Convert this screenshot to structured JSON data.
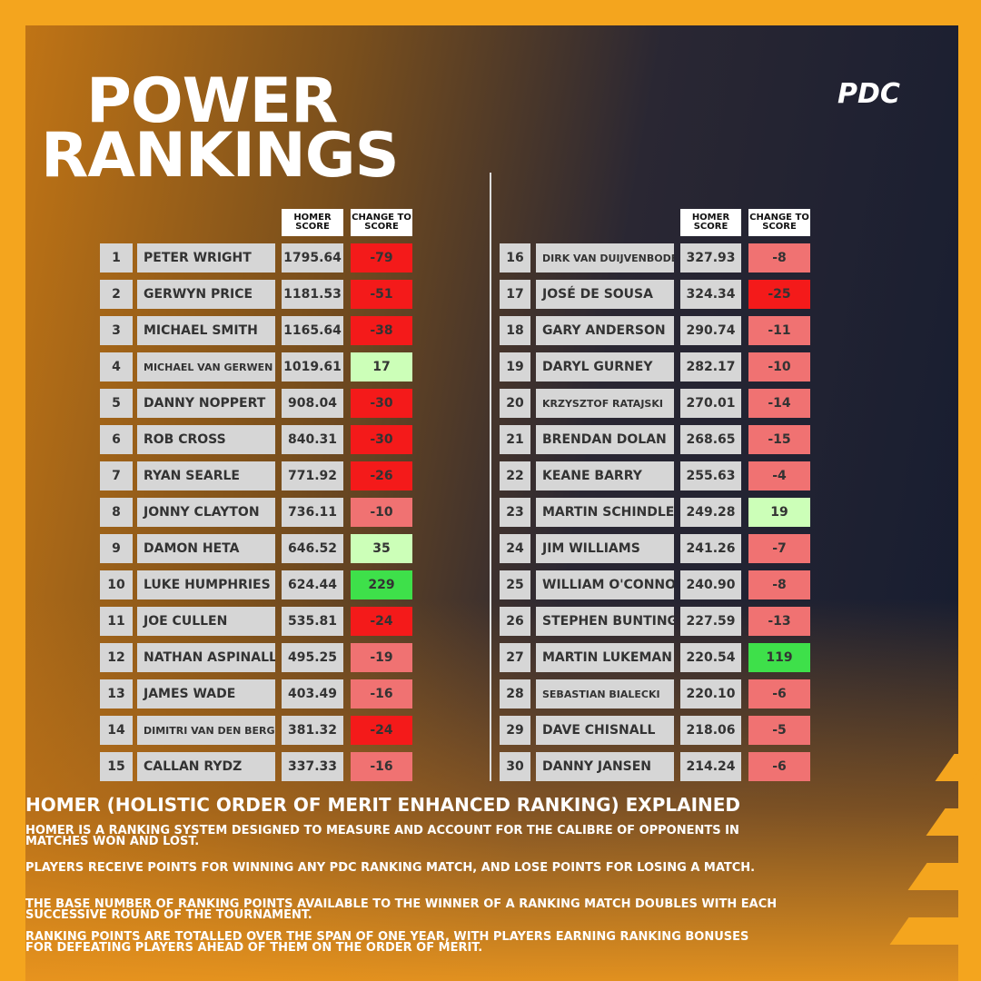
{
  "title_line1": "POWER",
  "title_line2": "RANKINGS",
  "logo": "PDC",
  "headers": {
    "score": "HOMER SCORE",
    "change": "CHANGE TO SCORE"
  },
  "rows": [
    {
      "rank": 1,
      "name": "PETER WRIGHT",
      "score": "1795.64",
      "change": -79,
      "color": "#f41a1a"
    },
    {
      "rank": 2,
      "name": "GERWYN PRICE",
      "score": "1181.53",
      "change": -51,
      "color": "#f41a1a"
    },
    {
      "rank": 3,
      "name": "MICHAEL SMITH",
      "score": "1165.64",
      "change": -38,
      "color": "#f41a1a"
    },
    {
      "rank": 4,
      "name": "MICHAEL VAN GERWEN",
      "score": "1019.61",
      "change": 17,
      "color": "#ccffb8"
    },
    {
      "rank": 5,
      "name": "DANNY NOPPERT",
      "score": "908.04",
      "change": -30,
      "color": "#f41a1a"
    },
    {
      "rank": 6,
      "name": "ROB CROSS",
      "score": "840.31",
      "change": -30,
      "color": "#f41a1a"
    },
    {
      "rank": 7,
      "name": "RYAN SEARLE",
      "score": "771.92",
      "change": -26,
      "color": "#f41a1a"
    },
    {
      "rank": 8,
      "name": "JONNY CLAYTON",
      "score": "736.11",
      "change": -10,
      "color": "#f07272"
    },
    {
      "rank": 9,
      "name": "DAMON HETA",
      "score": "646.52",
      "change": 35,
      "color": "#ccffb8"
    },
    {
      "rank": 10,
      "name": "LUKE HUMPHRIES",
      "score": "624.44",
      "change": 229,
      "color": "#3ee04a"
    },
    {
      "rank": 11,
      "name": "JOE CULLEN",
      "score": "535.81",
      "change": -24,
      "color": "#f41a1a"
    },
    {
      "rank": 12,
      "name": "NATHAN ASPINALL",
      "score": "495.25",
      "change": -19,
      "color": "#f07272"
    },
    {
      "rank": 13,
      "name": "JAMES WADE",
      "score": "403.49",
      "change": -16,
      "color": "#f07272"
    },
    {
      "rank": 14,
      "name": "DIMITRI VAN DEN BERGH",
      "score": "381.32",
      "change": -24,
      "color": "#f41a1a"
    },
    {
      "rank": 15,
      "name": "CALLAN RYDZ",
      "score": "337.33",
      "change": -16,
      "color": "#f07272"
    },
    {
      "rank": 16,
      "name": "DIRK VAN DUIJVENBODE",
      "score": "327.93",
      "change": -8,
      "color": "#f07272"
    },
    {
      "rank": 17,
      "name": "JOSÉ DE SOUSA",
      "score": "324.34",
      "change": -25,
      "color": "#f41a1a"
    },
    {
      "rank": 18,
      "name": "GARY ANDERSON",
      "score": "290.74",
      "change": -11,
      "color": "#f07272"
    },
    {
      "rank": 19,
      "name": "DARYL GURNEY",
      "score": "282.17",
      "change": -10,
      "color": "#f07272"
    },
    {
      "rank": 20,
      "name": "KRZYSZTOF RATAJSKI",
      "score": "270.01",
      "change": -14,
      "color": "#f07272"
    },
    {
      "rank": 21,
      "name": "BRENDAN DOLAN",
      "score": "268.65",
      "change": -15,
      "color": "#f07272"
    },
    {
      "rank": 22,
      "name": "KEANE BARRY",
      "score": "255.63",
      "change": -4,
      "color": "#f07272"
    },
    {
      "rank": 23,
      "name": "MARTIN SCHINDLER",
      "score": "249.28",
      "change": 19,
      "color": "#ccffb8"
    },
    {
      "rank": 24,
      "name": "JIM WILLIAMS",
      "score": "241.26",
      "change": -7,
      "color": "#f07272"
    },
    {
      "rank": 25,
      "name": "WILLIAM O'CONNOR",
      "score": "240.90",
      "change": -8,
      "color": "#f07272"
    },
    {
      "rank": 26,
      "name": "STEPHEN BUNTING",
      "score": "227.59",
      "change": -13,
      "color": "#f07272"
    },
    {
      "rank": 27,
      "name": "MARTIN LUKEMAN",
      "score": "220.54",
      "change": 119,
      "color": "#3ee04a"
    },
    {
      "rank": 28,
      "name": "SEBASTIAN BIALECKI",
      "score": "220.10",
      "change": -6,
      "color": "#f07272"
    },
    {
      "rank": 29,
      "name": "DAVE CHISNALL",
      "score": "218.06",
      "change": -5,
      "color": "#f07272"
    },
    {
      "rank": 30,
      "name": "DANNY JANSEN",
      "score": "214.24",
      "change": -6,
      "color": "#f07272"
    }
  ],
  "explainer": {
    "title": "HOMER (HOLISTIC ORDER OF MERIT ENHANCED RANKING) EXPLAINED",
    "paragraphs": [
      "HOMER IS A RANKING SYSTEM DESIGNED TO MEASURE AND ACCOUNT FOR THE CALIBRE OF OPPONENTS IN MATCHES WON AND LOST.",
      "PLAYERS RECEIVE POINTS FOR WINNING ANY PDC RANKING MATCH, AND LOSE POINTS FOR LOSING A MATCH.",
      "THE BASE NUMBER OF RANKING POINTS AVAILABLE TO THE WINNER OF A RANKING MATCH DOUBLES WITH EACH SUCCESSIVE ROUND OF THE TOURNAMENT.",
      "RANKING POINTS ARE TOTALLED OVER THE SPAN OF ONE YEAR, WITH PLAYERS EARNING RANKING BONUSES FOR DEFEATING PLAYERS AHEAD OF THEM ON THE ORDER OF MERIT."
    ]
  }
}
